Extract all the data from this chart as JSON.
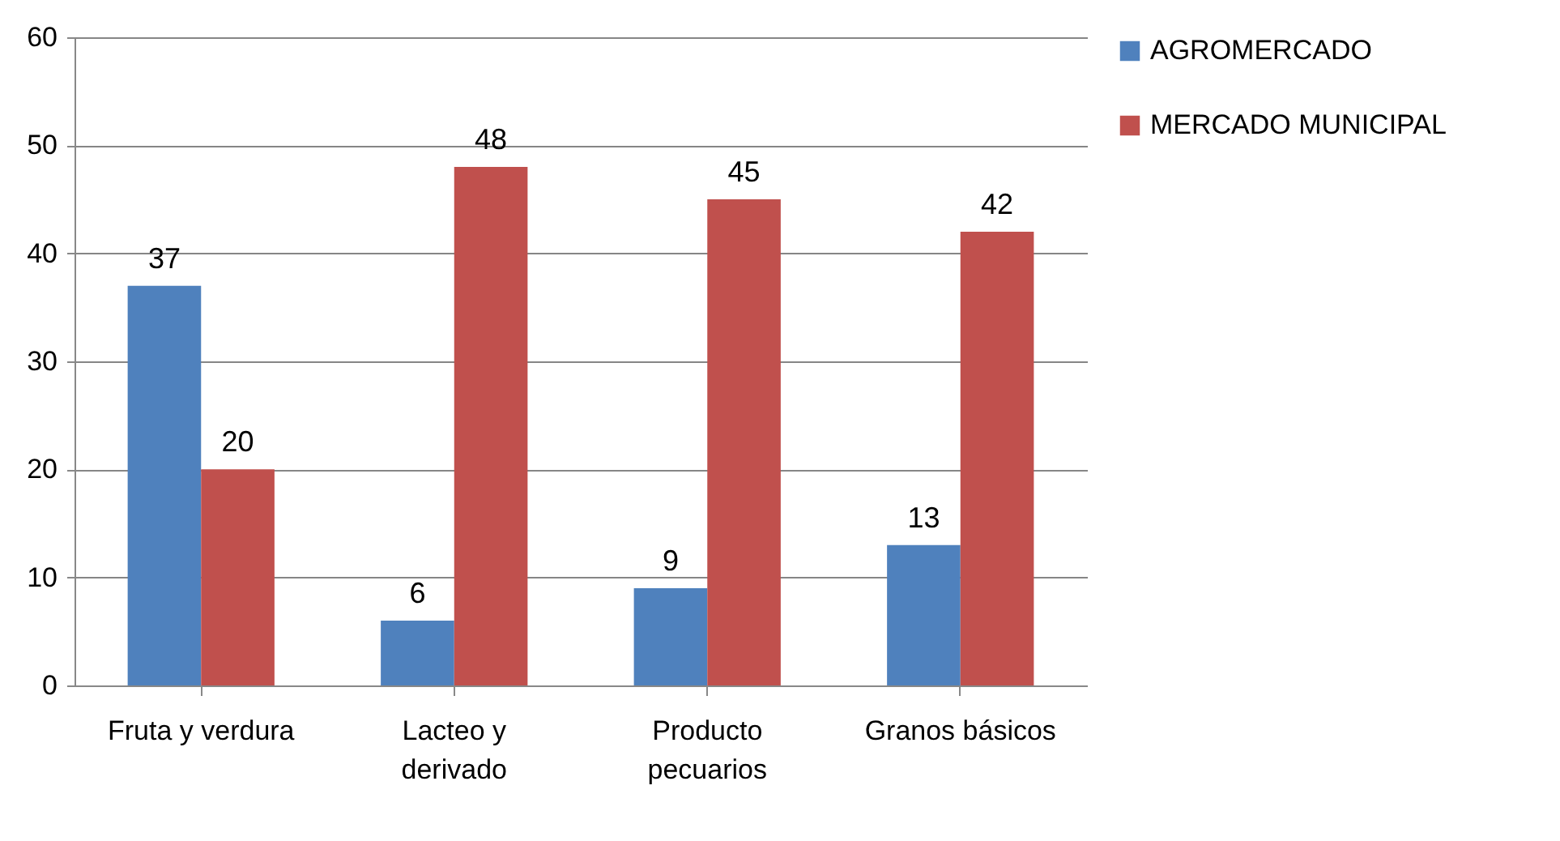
{
  "chart_data": {
    "type": "bar",
    "categories": [
      "Fruta y verdura",
      "Lacteo y derivado",
      "Producto pecuarios",
      "Granos básicos"
    ],
    "series": [
      {
        "name": "AGROMERCADO",
        "color": "#4f81bd",
        "values": [
          37,
          6,
          9,
          13
        ]
      },
      {
        "name": "MERCADO MUNICIPAL",
        "color": "#c0504d",
        "values": [
          20,
          48,
          45,
          42
        ]
      }
    ],
    "ylim": [
      0,
      60
    ],
    "yticks": [
      0,
      10,
      20,
      30,
      40,
      50,
      60
    ],
    "grid": "y",
    "legend": "right",
    "data_labels": true
  }
}
